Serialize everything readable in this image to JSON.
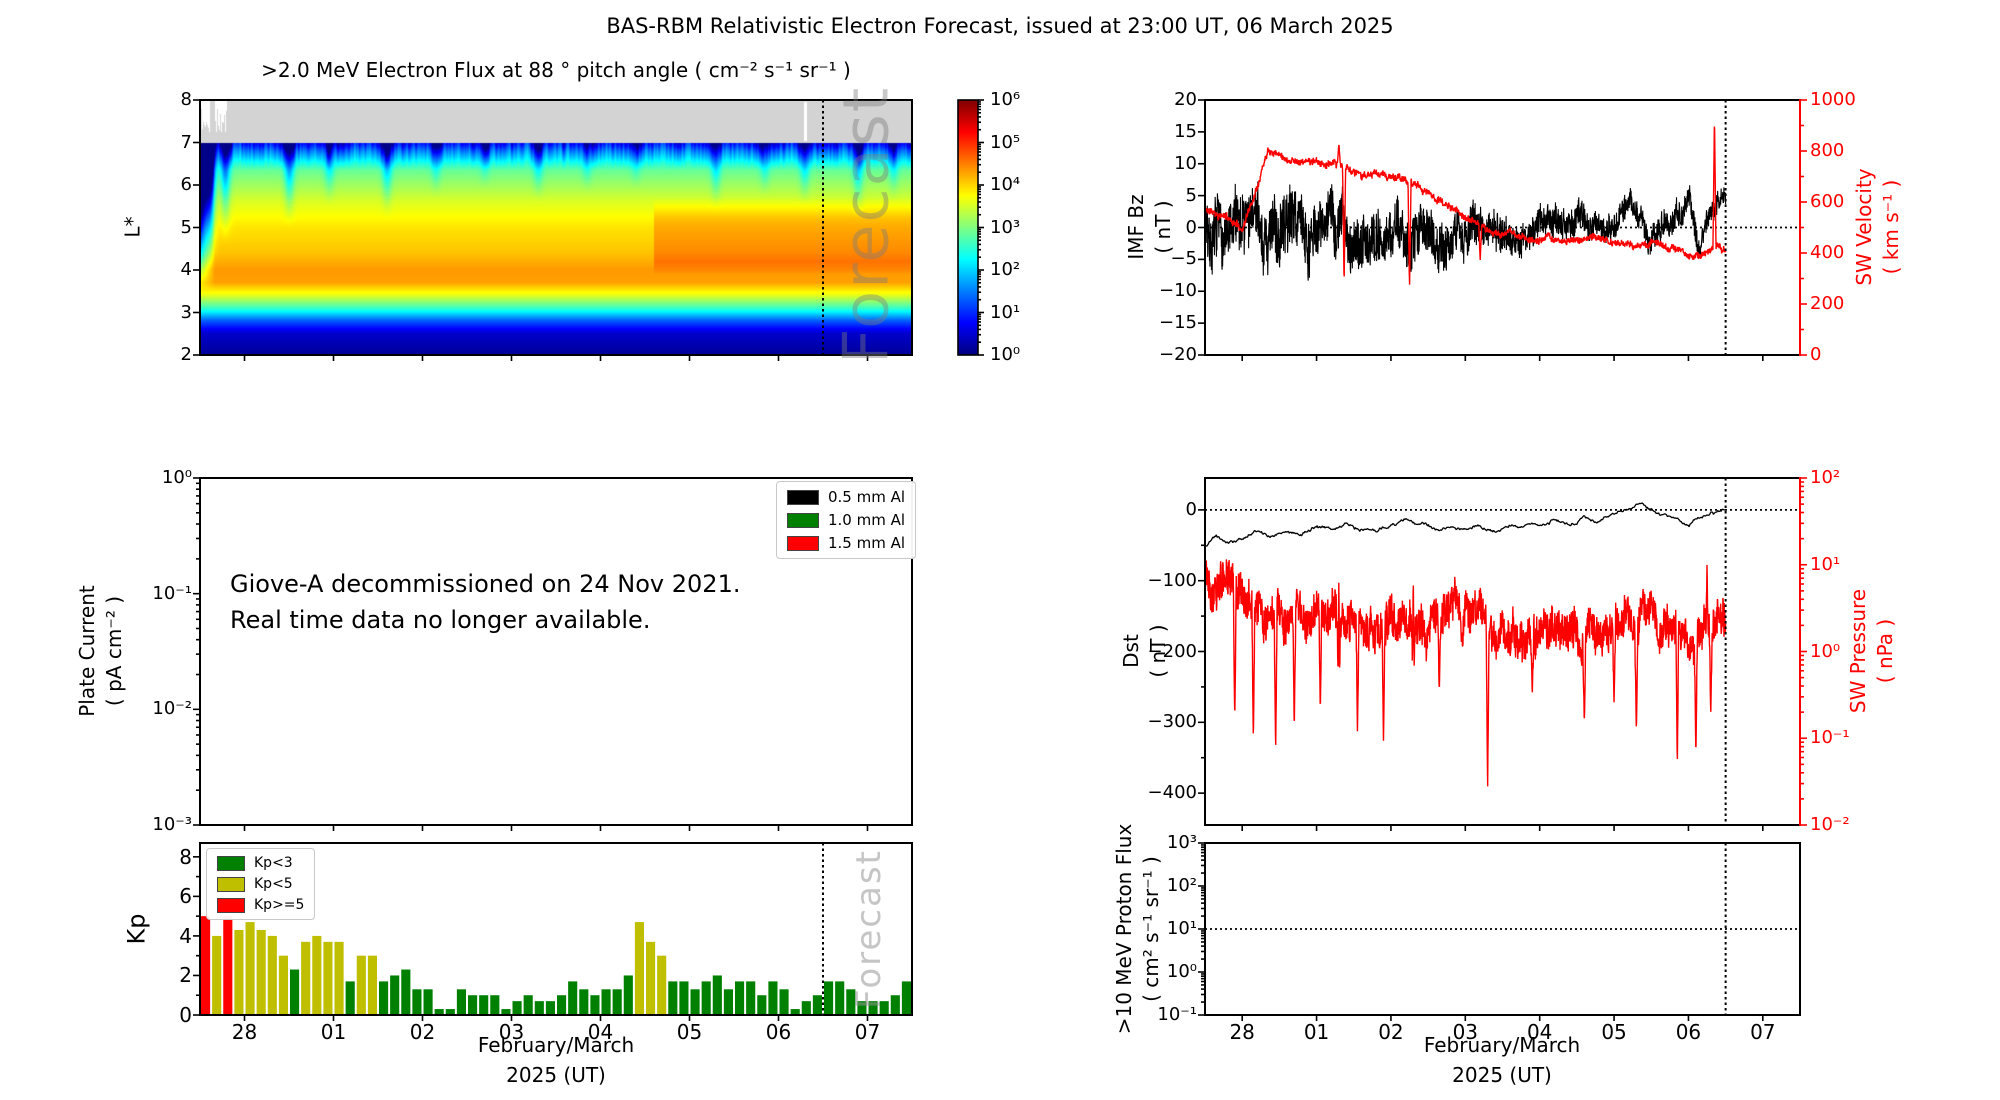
{
  "title": "BAS-RBM Relativistic Electron Forecast, issued at 23:00 UT, 06 March 2025",
  "forecast_watermark": "Forecast",
  "colors": {
    "kp_low_green": "#008000",
    "kp_mid_yellow": "#bfbf00",
    "kp_high_red": "#ff0000",
    "line_black": "#000000",
    "line_red": "#ff0000",
    "no_data_gray": "#d3d3d3"
  },
  "shared_x": {
    "tick_labels": [
      "28",
      "01",
      "02",
      "03",
      "04",
      "05",
      "06",
      "07"
    ],
    "tick_days": [
      28,
      29,
      30,
      31,
      32,
      33,
      34,
      35
    ],
    "range_days": [
      27.5,
      35.5
    ],
    "forecast_day": 34.5,
    "xlabel": "February/March\n2025 (UT)"
  },
  "chart_data": [
    {
      "id": "electron_flux",
      "type": "heatmap",
      "title": ">2.0 MeV Electron Flux at 88 ° pitch angle ( cm⁻² s⁻¹ sr⁻¹ )",
      "ylabel": "L*",
      "y_range": [
        2,
        8
      ],
      "y_ticks": [
        2,
        3,
        4,
        5,
        6,
        7,
        8
      ],
      "y_tick_labels": [
        "2",
        "3",
        "4",
        "5",
        "6",
        "7",
        "8"
      ],
      "colorbar": {
        "log10_range": [
          0,
          6
        ],
        "tick_labels": [
          "10⁰",
          "10¹",
          "10²",
          "10³",
          "10⁴",
          "10⁵",
          "10⁶"
        ]
      },
      "no_data_band_l": [
        7,
        8
      ],
      "flux_profile_log10": [
        [
          2,
          0.15
        ],
        [
          2.5,
          0.45
        ],
        [
          2.8,
          1.3
        ],
        [
          3.1,
          2.6
        ],
        [
          3.4,
          3.6
        ],
        [
          3.7,
          4.3
        ],
        [
          4.0,
          4.35
        ],
        [
          4.4,
          4.1
        ],
        [
          5.0,
          3.9
        ],
        [
          5.6,
          3.55
        ],
        [
          6.1,
          3.1
        ],
        [
          6.5,
          2.7
        ],
        [
          6.8,
          2.25
        ],
        [
          7.0,
          1.8
        ]
      ],
      "enhancement": {
        "start_day": 32.6,
        "l_range": [
          3.9,
          5.7
        ],
        "delta_log10": 0.35
      },
      "dropout_streaks": [
        [
          27.62,
          3.2,
          4.0
        ],
        [
          27.78,
          2.2,
          4.6
        ],
        [
          28.5,
          2.0,
          5.0
        ],
        [
          28.95,
          1.4,
          5.5
        ],
        [
          29.6,
          1.7,
          5.2
        ],
        [
          30.15,
          1.2,
          5.7
        ],
        [
          30.7,
          1.0,
          5.9
        ],
        [
          31.3,
          1.4,
          5.6
        ],
        [
          31.85,
          1.1,
          5.8
        ],
        [
          32.4,
          1.0,
          5.9
        ],
        [
          33.3,
          1.5,
          5.4
        ],
        [
          33.85,
          1.2,
          5.7
        ],
        [
          34.3,
          1.5,
          5.5
        ],
        [
          34.9,
          1.7,
          5.2
        ],
        [
          35.3,
          1.3,
          5.6
        ]
      ],
      "forecast_day": 34.5
    },
    {
      "id": "plate_current",
      "type": "empty",
      "ylabel": "Plate Current\n( pA cm⁻² )",
      "y_log_range": [
        0,
        -3
      ],
      "y_tick_exps": [
        0,
        -1,
        -2,
        -3
      ],
      "y_tick_labels": [
        "10⁰",
        "10⁻¹",
        "10⁻²",
        "10⁻³"
      ],
      "legend": [
        {
          "label": "0.5 mm Al",
          "color": "#000000"
        },
        {
          "label": "1.0 mm Al",
          "color": "#008000"
        },
        {
          "label": "1.5 mm Al",
          "color": "#ff0000"
        }
      ],
      "annotation": "Giove-A decommissioned on 24 Nov 2021.\nReal time data no longer available."
    },
    {
      "id": "kp",
      "type": "bar",
      "ylabel": "Kp",
      "y_range": [
        0,
        8.7
      ],
      "y_ticks": [
        0,
        2,
        4,
        6,
        8
      ],
      "y_tick_labels": [
        "0",
        "2",
        "4",
        "6",
        "8"
      ],
      "legend": [
        {
          "label": "Kp<3",
          "color": "#008000"
        },
        {
          "label": "Kp<5",
          "color": "#bfbf00"
        },
        {
          "label": "Kp>=5",
          "color": "#ff0000"
        }
      ],
      "start_day": 27.5,
      "interval_hours": 3,
      "values": [
        5,
        4,
        5,
        4.3,
        4.7,
        4.3,
        4,
        3,
        2.3,
        3.7,
        4,
        3.7,
        3.7,
        1.7,
        3,
        3,
        1.7,
        2,
        2.3,
        1.3,
        1.3,
        0.3,
        0.3,
        1.3,
        1,
        1,
        1,
        0.3,
        0.7,
        1,
        0.7,
        0.7,
        1,
        1.7,
        1.3,
        1,
        1.3,
        1.3,
        2,
        4.7,
        3.7,
        3,
        1.7,
        1.7,
        1.3,
        1.7,
        2,
        1.3,
        1.7,
        1.7,
        1,
        1.7,
        1.3,
        0.3,
        0.7,
        1,
        1.7,
        1.7,
        1.3,
        0.7,
        0.7,
        0.7,
        1,
        1.7
      ]
    },
    {
      "id": "imf_sw",
      "type": "line",
      "left": {
        "label": "IMF Bz\n( nT )",
        "range": [
          -20,
          20
        ],
        "ticks": [
          -20,
          -15,
          -10,
          -5,
          0,
          5,
          10,
          15,
          20
        ],
        "tick_labels": [
          "−20",
          "−15",
          "−10",
          "−5",
          "0",
          "5",
          "10",
          "15",
          "20"
        ],
        "color": "#000000"
      },
      "right": {
        "label": "SW Velocity\n( km s⁻¹ )",
        "range": [
          0,
          1000
        ],
        "ticks": [
          0,
          200,
          400,
          600,
          800,
          1000
        ],
        "tick_labels": [
          "0",
          "200",
          "400",
          "600",
          "800",
          "1000"
        ],
        "color": "#ff0000"
      },
      "hline_left": 0,
      "series": [
        {
          "name": "IMF Bz",
          "axis": "left",
          "color": "#000000",
          "mean_anchors": [
            [
              27.5,
              1
            ],
            [
              27.8,
              -2
            ],
            [
              28.1,
              1
            ],
            [
              28.4,
              -2
            ],
            [
              28.7,
              2
            ],
            [
              29.0,
              -1
            ],
            [
              29.3,
              1
            ],
            [
              29.6,
              -2
            ],
            [
              29.9,
              0
            ],
            [
              30.2,
              -1
            ],
            [
              30.5,
              1
            ],
            [
              30.8,
              -1
            ],
            [
              31.1,
              0
            ],
            [
              31.4,
              1
            ],
            [
              31.7,
              -1
            ],
            [
              32.0,
              0
            ],
            [
              32.3,
              1
            ],
            [
              32.6,
              2
            ],
            [
              32.9,
              1
            ],
            [
              33.2,
              3
            ],
            [
              33.5,
              -2
            ],
            [
              33.8,
              2
            ],
            [
              34.0,
              3
            ],
            [
              34.15,
              -2
            ],
            [
              34.3,
              2
            ],
            [
              34.45,
              5
            ]
          ],
          "noise_amp_anchors": [
            [
              27.5,
              5.5
            ],
            [
              28.3,
              6.5
            ],
            [
              29.0,
              5.5
            ],
            [
              29.8,
              5
            ],
            [
              30.6,
              4.5
            ],
            [
              31.4,
              3.5
            ],
            [
              32.2,
              3
            ],
            [
              33.0,
              2.5
            ],
            [
              33.8,
              2.8
            ],
            [
              34.45,
              2
            ]
          ]
        },
        {
          "name": "SW Velocity",
          "axis": "right",
          "color": "#ff0000",
          "anchors": [
            [
              27.5,
              570
            ],
            [
              27.8,
              540
            ],
            [
              28.0,
              500
            ],
            [
              28.15,
              620
            ],
            [
              28.35,
              830
            ],
            [
              28.6,
              780
            ],
            [
              28.9,
              760
            ],
            [
              29.2,
              740
            ],
            [
              29.5,
              720
            ],
            [
              29.8,
              700
            ],
            [
              30.1,
              690
            ],
            [
              30.45,
              650
            ],
            [
              30.7,
              600
            ],
            [
              30.9,
              560
            ],
            [
              31.1,
              520
            ],
            [
              31.3,
              490
            ],
            [
              31.6,
              470
            ],
            [
              31.9,
              455
            ],
            [
              32.2,
              450
            ],
            [
              32.5,
              445
            ],
            [
              32.8,
              460
            ],
            [
              33.1,
              440
            ],
            [
              33.4,
              430
            ],
            [
              33.7,
              420
            ],
            [
              34.0,
              400
            ],
            [
              34.2,
              395
            ],
            [
              34.35,
              430
            ],
            [
              34.45,
              410
            ]
          ],
          "spikes": [
            [
              29.3,
              830
            ],
            [
              29.37,
              270
            ],
            [
              30.25,
              255
            ],
            [
              31.2,
              370
            ],
            [
              34.35,
              940
            ]
          ],
          "noise_amp": 12
        }
      ]
    },
    {
      "id": "dst_pressure",
      "type": "line",
      "left": {
        "label": "Dst\n( nT )",
        "range": [
          45,
          -445
        ],
        "ticks": [
          0,
          -100,
          -200,
          -300,
          -400
        ],
        "tick_labels": [
          "0",
          "−100",
          "−200",
          "−300",
          "−400"
        ],
        "color": "#000000"
      },
      "right": {
        "label": "SW Pressure\n( nPa )",
        "log10_range": [
          2,
          -2
        ],
        "tick_exps": [
          2,
          1,
          0,
          -1,
          -2
        ],
        "tick_labels": [
          "10²",
          "10¹",
          "10⁰",
          "10⁻¹",
          "10⁻²"
        ],
        "color": "#ff0000"
      },
      "hline_left": 0,
      "series": [
        {
          "name": "Dst",
          "axis": "left",
          "color": "#000000",
          "anchors": [
            [
              27.5,
              -52
            ],
            [
              27.65,
              -38
            ],
            [
              27.8,
              -48
            ],
            [
              28.0,
              -42
            ],
            [
              28.2,
              -30
            ],
            [
              28.4,
              -38
            ],
            [
              28.6,
              -30
            ],
            [
              28.8,
              -35
            ],
            [
              29.0,
              -22
            ],
            [
              29.2,
              -28
            ],
            [
              29.4,
              -18
            ],
            [
              29.6,
              -28
            ],
            [
              29.8,
              -32
            ],
            [
              30.0,
              -20
            ],
            [
              30.2,
              -12
            ],
            [
              30.4,
              -22
            ],
            [
              30.6,
              -28
            ],
            [
              30.8,
              -20
            ],
            [
              31.0,
              -25
            ],
            [
              31.2,
              -18
            ],
            [
              31.4,
              -28
            ],
            [
              31.6,
              -20
            ],
            [
              31.8,
              -25
            ],
            [
              32.0,
              -18
            ],
            [
              32.2,
              -12
            ],
            [
              32.4,
              -18
            ],
            [
              32.6,
              -8
            ],
            [
              32.8,
              -15
            ],
            [
              33.0,
              -5
            ],
            [
              33.2,
              3
            ],
            [
              33.35,
              10
            ],
            [
              33.5,
              -2
            ],
            [
              33.7,
              -8
            ],
            [
              33.9,
              -18
            ],
            [
              34.0,
              -22
            ],
            [
              34.1,
              -12
            ],
            [
              34.2,
              -6
            ],
            [
              34.3,
              -4
            ],
            [
              34.4,
              -2
            ],
            [
              34.45,
              -1
            ]
          ],
          "noise_amp": 2
        },
        {
          "name": "SW Pressure",
          "axis": "right_log",
          "color": "#ff0000",
          "log_anchors": [
            [
              27.5,
              1.05
            ],
            [
              27.7,
              0.85
            ],
            [
              27.9,
              0.7
            ],
            [
              28.1,
              0.55
            ],
            [
              28.3,
              0.45
            ],
            [
              28.6,
              0.35
            ],
            [
              28.9,
              0.3
            ],
            [
              29.2,
              0.4
            ],
            [
              29.5,
              0.45
            ],
            [
              29.8,
              0.35
            ],
            [
              30.1,
              0.3
            ],
            [
              30.4,
              0.4
            ],
            [
              30.7,
              0.45
            ],
            [
              31.0,
              0.4
            ],
            [
              31.3,
              0.25
            ],
            [
              31.6,
              0.15
            ],
            [
              31.9,
              0.2
            ],
            [
              32.2,
              0.3
            ],
            [
              32.5,
              0.25
            ],
            [
              32.8,
              0.15
            ],
            [
              33.1,
              0.3
            ],
            [
              33.4,
              0.45
            ],
            [
              33.7,
              0.3
            ],
            [
              34.0,
              0.1
            ],
            [
              34.15,
              0.15
            ],
            [
              34.3,
              0.3
            ],
            [
              34.45,
              0.4
            ]
          ],
          "neg_spikes": [
            [
              27.9,
              -0.8
            ],
            [
              28.15,
              -1.05
            ],
            [
              28.45,
              -1.15
            ],
            [
              28.7,
              -0.9
            ],
            [
              29.05,
              -0.7
            ],
            [
              29.3,
              -1.25
            ],
            [
              29.55,
              -0.95
            ],
            [
              29.9,
              -1.05
            ],
            [
              30.3,
              -0.65
            ],
            [
              30.65,
              -0.5
            ],
            [
              31.3,
              -1.6
            ],
            [
              31.9,
              -0.5
            ],
            [
              32.6,
              -0.85
            ],
            [
              33.0,
              -0.6
            ],
            [
              33.3,
              -0.95
            ],
            [
              33.85,
              -1.35
            ],
            [
              34.1,
              -1.2
            ],
            [
              34.3,
              -0.75
            ]
          ],
          "pos_spikes": [
            [
              29.3,
              1.0
            ],
            [
              30.3,
              0.95
            ],
            [
              33.5,
              0.7
            ],
            [
              34.25,
              1.05
            ]
          ],
          "noise_amp_log": 0.2
        }
      ]
    },
    {
      "id": "proton_flux",
      "type": "empty",
      "ylabel": ">10 MeV Proton Flux\n( cm² s⁻¹ sr⁻¹ )",
      "y_log_range": [
        3,
        -1
      ],
      "y_tick_exps": [
        3,
        2,
        1,
        0,
        -1
      ],
      "y_tick_labels": [
        "10³",
        "10²",
        "10¹",
        "10⁰",
        "10⁻¹"
      ],
      "hline_log10": 1
    }
  ]
}
